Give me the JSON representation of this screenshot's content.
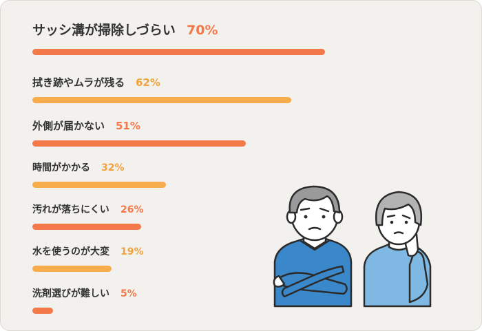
{
  "chart_data": {
    "type": "bar",
    "orientation": "horizontal",
    "unit": "%",
    "xlim": [
      0,
      100
    ],
    "items": [
      {
        "label": "サッシ溝が掃除しづらい",
        "value": 70,
        "value_label": "70%",
        "color": "#f4794a",
        "text_color": "#f4794a"
      },
      {
        "label": "拭き跡やムラが残る",
        "value": 62,
        "value_label": "62%",
        "color": "#f7ad4c",
        "text_color": "#f2a23c"
      },
      {
        "label": "外側が届かない",
        "value": 51,
        "value_label": "51%",
        "color": "#f4794a",
        "text_color": "#f4794a"
      },
      {
        "label": "時間がかかる",
        "value": 32,
        "value_label": "32%",
        "color": "#f7ad4c",
        "text_color": "#f2a23c"
      },
      {
        "label": "汚れが落ちにくい",
        "value": 26,
        "value_label": "26%",
        "color": "#f4794a",
        "text_color": "#f4794a"
      },
      {
        "label": "水を使うのが大変",
        "value": 19,
        "value_label": "19%",
        "color": "#f7ad4c",
        "text_color": "#f2a23c"
      },
      {
        "label": "洗剤選びが難しい",
        "value": 5,
        "value_label": "5%",
        "color": "#f4794a",
        "text_color": "#f4794a"
      }
    ]
  },
  "illustration": {
    "icons": [
      "thinking-man-arms-crossed-icon",
      "thinking-woman-hand-on-chin-icon"
    ],
    "colors": {
      "man_sweater": "#3a87c9",
      "woman_top": "#7fb9e3",
      "man_hair": "#9a9a9a",
      "woman_hair": "#b3b3b3",
      "skin": "#ffffff",
      "outline": "#2b2b2b"
    }
  }
}
